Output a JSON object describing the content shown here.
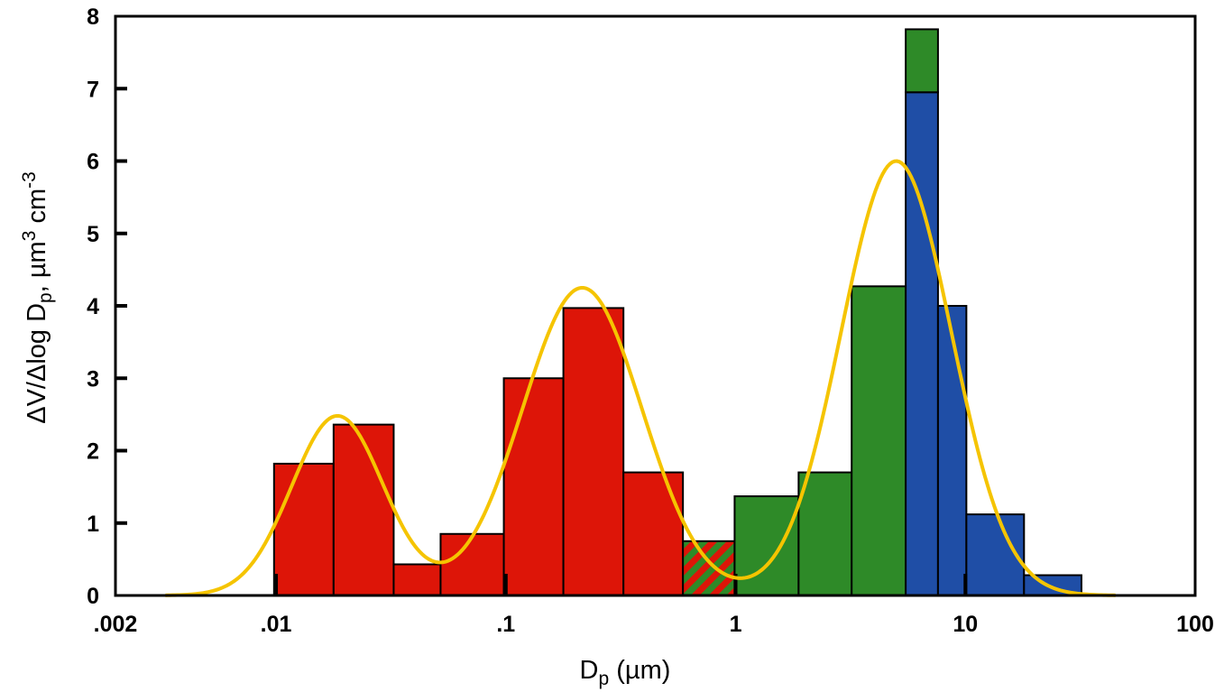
{
  "chart_data": {
    "type": "bar",
    "xscale": "log",
    "xlim": [
      0.002,
      100
    ],
    "ylim": [
      0,
      8
    ],
    "grid": false,
    "legend": "none",
    "xlabel": {
      "main": "D",
      "sub": "p",
      "rest": " (µm)"
    },
    "ylabel": {
      "part1": "ΔV/Δlog D",
      "sub": "p",
      "part2": ", µm",
      "sup1": "3",
      "part3": " cm",
      "sup2": "-3"
    },
    "xticks": [
      {
        "value": 0.002,
        "label": ".002"
      },
      {
        "value": 0.01,
        "label": ".01"
      },
      {
        "value": 0.1,
        "label": ".1"
      },
      {
        "value": 1,
        "label": "1"
      },
      {
        "value": 10,
        "label": "10"
      },
      {
        "value": 100,
        "label": "100"
      }
    ],
    "yticks": [
      0,
      1,
      2,
      3,
      4,
      5,
      6,
      7,
      8
    ],
    "colors": {
      "red": "#dd1508",
      "green": "#2e8a28",
      "blue": "#1f4ea6",
      "curve": "#f5c400",
      "outline": "#000000"
    },
    "bins": [
      {
        "x0": 0.0098,
        "x1": 0.0178,
        "value": 1.82,
        "color": "red"
      },
      {
        "x0": 0.0178,
        "x1": 0.0325,
        "value": 2.36,
        "color": "red"
      },
      {
        "x0": 0.0325,
        "x1": 0.052,
        "value": 0.43,
        "color": "red"
      },
      {
        "x0": 0.052,
        "x1": 0.098,
        "value": 0.85,
        "color": "red"
      },
      {
        "x0": 0.098,
        "x1": 0.178,
        "value": 3.0,
        "color": "red"
      },
      {
        "x0": 0.178,
        "x1": 0.325,
        "value": 3.97,
        "color": "red"
      },
      {
        "x0": 0.325,
        "x1": 0.59,
        "value": 1.7,
        "color": "red"
      },
      {
        "x0": 0.59,
        "x1": 0.99,
        "value": 0.75,
        "color": "red-green-hatched"
      },
      {
        "x0": 0.99,
        "x1": 1.88,
        "value": 1.37,
        "color": "green"
      },
      {
        "x0": 1.88,
        "x1": 3.2,
        "value": 1.7,
        "color": "green"
      },
      {
        "x0": 3.2,
        "x1": 5.5,
        "value": 4.27,
        "color": "green"
      },
      {
        "x0": 5.5,
        "x1": 7.6,
        "value": 6.95,
        "color": "blue",
        "stack": {
          "value": 0.87,
          "color": "green"
        }
      },
      {
        "x0": 7.6,
        "x1": 10.1,
        "value": 4.0,
        "color": "blue"
      },
      {
        "x0": 10.1,
        "x1": 18.0,
        "value": 1.12,
        "color": "blue"
      },
      {
        "x0": 18.0,
        "x1": 32.0,
        "value": 0.28,
        "color": "blue"
      }
    ],
    "fit_curve": {
      "color": "curve",
      "x_range": [
        0.0033,
        45
      ],
      "modes": [
        {
          "amplitude": 2.48,
          "center": 0.0185,
          "sigma_log10": 0.2
        },
        {
          "amplitude": 4.25,
          "center": 0.215,
          "sigma_log10": 0.26
        },
        {
          "amplitude": 6.0,
          "center": 5.0,
          "sigma_log10": 0.24
        }
      ]
    }
  }
}
